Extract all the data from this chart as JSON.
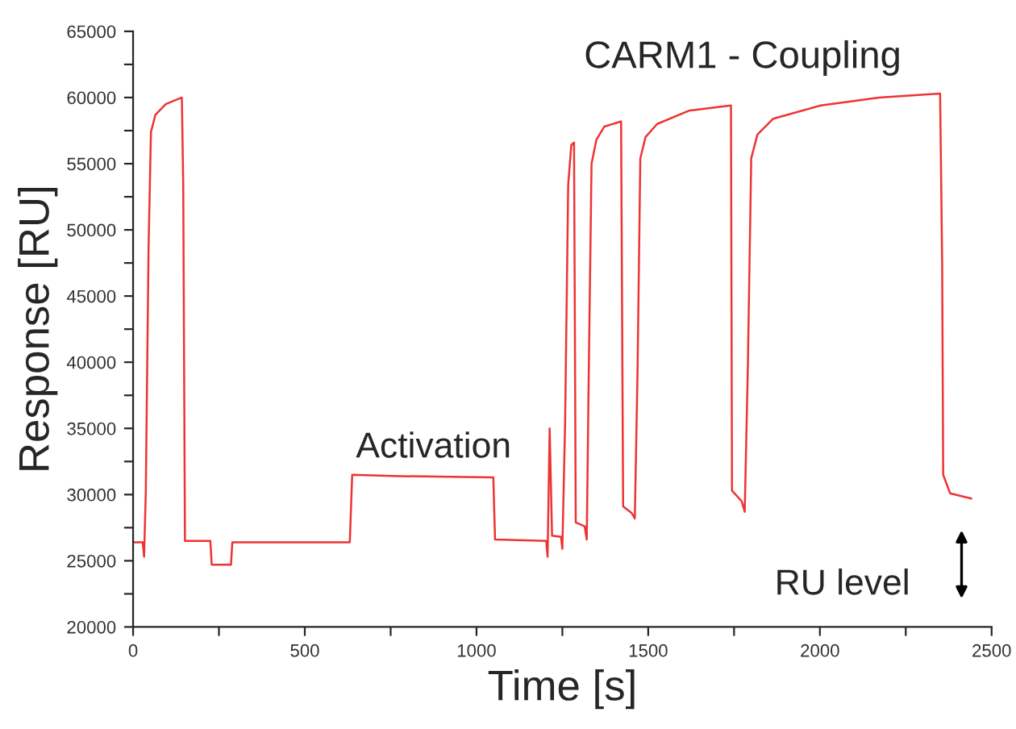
{
  "chart_data": {
    "type": "line",
    "title": "CARM1 - Coupling",
    "xlabel": "Time [s]",
    "ylabel": "Response [RU]",
    "x": [
      0,
      28,
      32,
      37,
      45,
      52,
      65,
      95,
      142,
      146,
      151,
      225,
      229,
      285,
      289,
      631,
      638,
      757,
      1049,
      1054,
      1203,
      1207,
      1213,
      1220,
      1246,
      1250,
      1258,
      1267,
      1276,
      1284,
      1289,
      1315,
      1321,
      1327,
      1335,
      1349,
      1372,
      1421,
      1427,
      1452,
      1461,
      1469,
      1477,
      1492,
      1526,
      1618,
      1741,
      1744,
      1772,
      1781,
      1790,
      1800,
      1818,
      1864,
      2003,
      2172,
      2350,
      2356,
      2359,
      2379,
      2441
    ],
    "series": [
      {
        "color": "#ee3333",
        "values": [
          26400,
          26400,
          25300,
          30200,
          48600,
          57400,
          58700,
          59500,
          60000,
          53400,
          26500,
          26500,
          24700,
          24700,
          26400,
          26400,
          31500,
          31400,
          31300,
          26600,
          26500,
          25300,
          35000,
          26900,
          26800,
          25900,
          35400,
          53400,
          56400,
          56600,
          27900,
          27600,
          26600,
          39400,
          55000,
          56800,
          57800,
          58200,
          29100,
          28600,
          28200,
          39400,
          55400,
          57000,
          58000,
          59000,
          59400,
          30300,
          29500,
          28700,
          39400,
          55400,
          57200,
          58400,
          59400,
          60000,
          60300,
          47400,
          31500,
          30100,
          29700
        ]
      }
    ],
    "xlim": [
      0,
      2500
    ],
    "ylim": [
      20000,
      65000
    ],
    "xticks": [
      0,
      {
        "value": 250,
        "label": null
      },
      500,
      {
        "value": 750,
        "label": null
      },
      1000,
      {
        "value": 1250,
        "label": null
      },
      1500,
      {
        "value": 1750,
        "label": null
      },
      2000,
      {
        "value": 2250,
        "label": null
      },
      2500
    ],
    "yticks": [
      20000,
      {
        "value": 22500,
        "label": null
      },
      25000,
      {
        "value": 27500,
        "label": null
      },
      30000,
      {
        "value": 32500,
        "label": null
      },
      35000,
      {
        "value": 37500,
        "label": null
      },
      40000,
      {
        "value": 42500,
        "label": null
      },
      45000,
      {
        "value": 47500,
        "label": null
      },
      50000,
      {
        "value": 52500,
        "label": null
      },
      55000,
      {
        "value": 57500,
        "label": null
      },
      60000,
      {
        "value": 62500,
        "label": null
      },
      65000
    ],
    "annotations": [
      "Activation",
      "RU level"
    ],
    "grid": false,
    "legend": false,
    "marker": "none",
    "line_style": "solid"
  }
}
